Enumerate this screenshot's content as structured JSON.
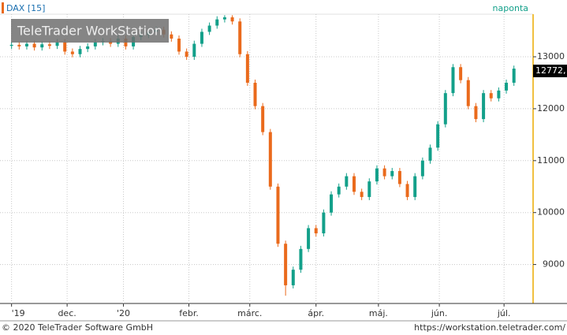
{
  "chart_data": {
    "type": "candlestick",
    "symbol": "DAX [15]",
    "period": "naponta",
    "watermark": "TeleTrader WorkStation",
    "copyright": "© 2020 TeleTrader Software GmbH",
    "url": "https://workstation.teletrader.com/",
    "last_label": "12772,",
    "up_color": "#13a08a",
    "down_color": "#ea6a1c",
    "xlim": [
      -1,
      68
    ],
    "xticks": [
      {
        "value": 0,
        "label": "'19"
      },
      {
        "value": 7.3,
        "label": "dec."
      },
      {
        "value": 14.7,
        "label": "'20"
      },
      {
        "value": 23.3,
        "label": "febr."
      },
      {
        "value": 31.3,
        "label": "márc."
      },
      {
        "value": 40,
        "label": "ápr."
      },
      {
        "value": 48.2,
        "label": "máj."
      },
      {
        "value": 56.2,
        "label": "jún."
      },
      {
        "value": 64.7,
        "label": "júl."
      }
    ],
    "ylim": [
      8250,
      13820
    ],
    "yticks": [
      9000,
      10000,
      11000,
      12000,
      13000
    ],
    "grid": true,
    "open": [
      13210,
      13230,
      13200,
      13250,
      13180,
      13240,
      13210,
      13280,
      13100,
      13050,
      13150,
      13200,
      13280,
      13300,
      13250,
      13350,
      13200,
      13380,
      13420,
      13480,
      13520,
      13430,
      13350,
      13100,
      13000,
      13250,
      13480,
      13600,
      13720,
      13760,
      13680,
      13050,
      12500,
      12050,
      11550,
      10500,
      9400,
      8600,
      8900,
      9300,
      9700,
      9600,
      10000,
      10350,
      10500,
      10700,
      10400,
      10300,
      10600,
      10850,
      10700,
      10800,
      10550,
      10300,
      10700,
      11000,
      11250,
      11700,
      12300,
      12800,
      12550,
      12050,
      11800,
      12300,
      12200,
      12350,
      12500
    ],
    "high": [
      13290,
      13290,
      13310,
      13310,
      13300,
      13300,
      13340,
      13340,
      13160,
      13210,
      13260,
      13340,
      13360,
      13360,
      13410,
      13410,
      13440,
      13480,
      13540,
      13580,
      13580,
      13490,
      13410,
      13160,
      13310,
      13540,
      13660,
      13780,
      13800,
      13800,
      13740,
      13110,
      12560,
      12110,
      11610,
      10560,
      9460,
      8960,
      9360,
      9760,
      9760,
      10060,
      10410,
      10560,
      10760,
      10760,
      10460,
      10660,
      10910,
      10910,
      10860,
      10860,
      10610,
      10760,
      11060,
      11310,
      11760,
      12360,
      12860,
      12860,
      12610,
      12110,
      12360,
      12360,
      12410,
      12560,
      12830
    ],
    "low": [
      13150,
      13140,
      13140,
      13120,
      13120,
      13150,
      13150,
      13040,
      12990,
      12990,
      13090,
      13140,
      13220,
      13190,
      13190,
      13140,
      13140,
      13320,
      13360,
      13420,
      13370,
      13290,
      13040,
      12940,
      12940,
      13190,
      13420,
      13540,
      13660,
      13620,
      12990,
      12440,
      11990,
      11490,
      10440,
      9340,
      8400,
      8540,
      8840,
      9240,
      9540,
      9540,
      9940,
      10290,
      10440,
      10340,
      10240,
      10240,
      10540,
      10640,
      10640,
      10490,
      10240,
      10240,
      10640,
      10940,
      11190,
      11640,
      12240,
      12490,
      11990,
      11740,
      11740,
      12140,
      12140,
      12290,
      12440
    ],
    "close": [
      13230,
      13200,
      13250,
      13180,
      13240,
      13210,
      13280,
      13100,
      13050,
      13150,
      13200,
      13280,
      13300,
      13250,
      13350,
      13200,
      13380,
      13420,
      13480,
      13520,
      13430,
      13350,
      13100,
      13000,
      13250,
      13480,
      13600,
      13720,
      13760,
      13680,
      13050,
      12500,
      12050,
      11550,
      10500,
      9400,
      8600,
      8900,
      9300,
      9700,
      9600,
      10000,
      10350,
      10500,
      10700,
      10400,
      10300,
      10600,
      10850,
      10700,
      10800,
      10550,
      10300,
      10700,
      11000,
      11250,
      11700,
      12300,
      12800,
      12550,
      12050,
      11800,
      12300,
      12200,
      12350,
      12500,
      12772
    ]
  }
}
